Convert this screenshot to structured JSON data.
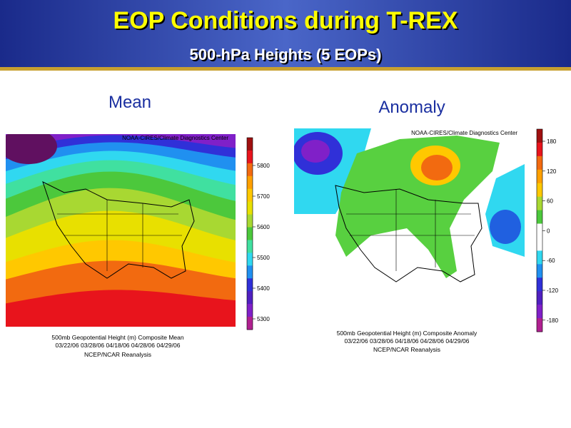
{
  "header": {
    "title": "EOP Conditions during T-REX",
    "subtitle": "500-hPa Heights (5 EOPs)"
  },
  "panels": [
    {
      "label": "Mean",
      "credit": "NOAA-CIRES/Climate Diagnostics Center",
      "colorbar_ticks": [
        5800,
        5700,
        5600,
        5500,
        5400,
        5300
      ],
      "caption": [
        "500mb Geopotential Height (m) Composite Mean",
        "03/22/06 03/28/06 04/18/06 04/28/06 04/29/06",
        "NCEP/NCAR Reanalysis"
      ]
    },
    {
      "label": "Anomaly",
      "credit": "NOAA-CIRES/Climate Diagnostics Center",
      "colorbar_ticks": [
        180,
        120,
        60,
        0,
        -60,
        -120,
        -180
      ],
      "caption": [
        "500mb Geopotential Height (m) Composite Anomaly",
        "03/22/06 03/28/06 04/18/06 04/28/06 04/29/06",
        "NCEP/NCAR Reanalysis"
      ]
    }
  ]
}
